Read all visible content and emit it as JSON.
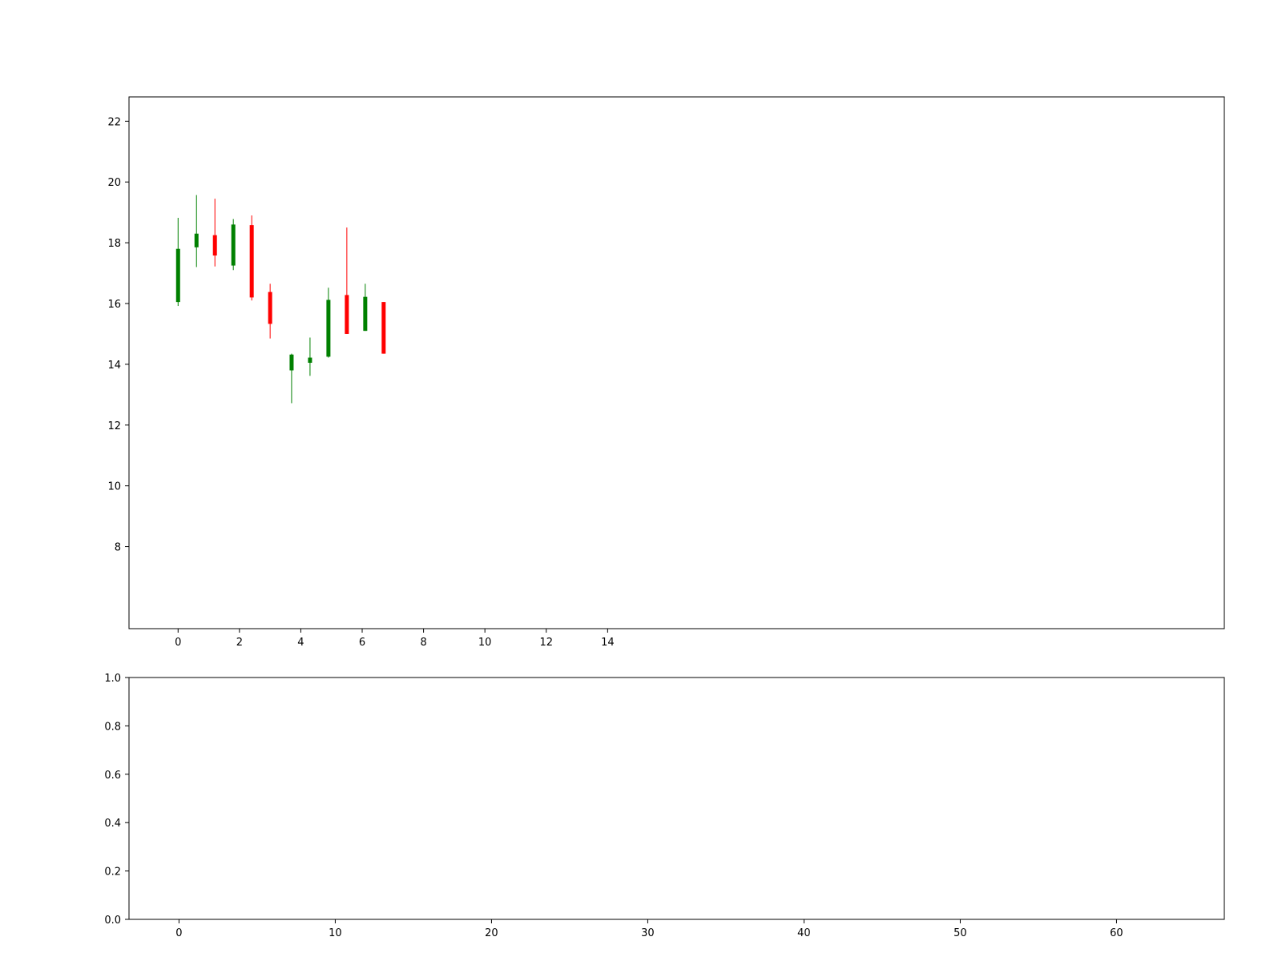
{
  "chart_data": [
    {
      "type": "candlestick",
      "ylim": [
        5.3,
        22.8
      ],
      "xlim": [
        -1.6,
        34.1
      ],
      "xticks": [
        0,
        2,
        4,
        6,
        8,
        10,
        12,
        14
      ],
      "yticks": [
        8,
        10,
        12,
        14,
        16,
        18,
        20,
        22
      ],
      "grid": false,
      "colors": {
        "up": "#008000",
        "down": "#ff0000"
      },
      "candles": [
        {
          "x": 0.0,
          "open": 16.05,
          "close": 17.8,
          "high": 18.82,
          "low": 15.92
        },
        {
          "x": 0.6,
          "open": 17.85,
          "close": 18.3,
          "high": 19.57,
          "low": 17.2
        },
        {
          "x": 1.2,
          "open": 18.25,
          "close": 17.58,
          "high": 19.45,
          "low": 17.22
        },
        {
          "x": 1.8,
          "open": 17.25,
          "close": 18.6,
          "high": 18.78,
          "low": 17.1
        },
        {
          "x": 2.4,
          "open": 18.58,
          "close": 16.2,
          "high": 18.9,
          "low": 16.1
        },
        {
          "x": 3.0,
          "open": 16.38,
          "close": 15.33,
          "high": 16.65,
          "low": 14.85
        },
        {
          "x": 3.7,
          "open": 13.8,
          "close": 14.32,
          "high": 14.35,
          "low": 12.72
        },
        {
          "x": 4.3,
          "open": 14.05,
          "close": 14.22,
          "high": 14.88,
          "low": 13.62
        },
        {
          "x": 4.9,
          "open": 14.25,
          "close": 16.12,
          "high": 16.52,
          "low": 14.22
        },
        {
          "x": 5.5,
          "open": 16.28,
          "close": 15.0,
          "high": 18.5,
          "low": 15.0
        },
        {
          "x": 6.1,
          "open": 15.1,
          "close": 16.22,
          "high": 16.65,
          "low": 15.1
        },
        {
          "x": 6.7,
          "open": 16.05,
          "close": 14.35,
          "high": 16.05,
          "low": 14.35
        }
      ]
    },
    {
      "type": "bar",
      "ylim": [
        0.0,
        1.0
      ],
      "xlim": [
        -3.2,
        66.9
      ],
      "xticks": [
        0,
        10,
        20,
        30,
        40,
        50,
        60
      ],
      "yticks": [
        0.0,
        0.2,
        0.4,
        0.6,
        0.8,
        1.0
      ],
      "grid": false,
      "values": []
    }
  ]
}
